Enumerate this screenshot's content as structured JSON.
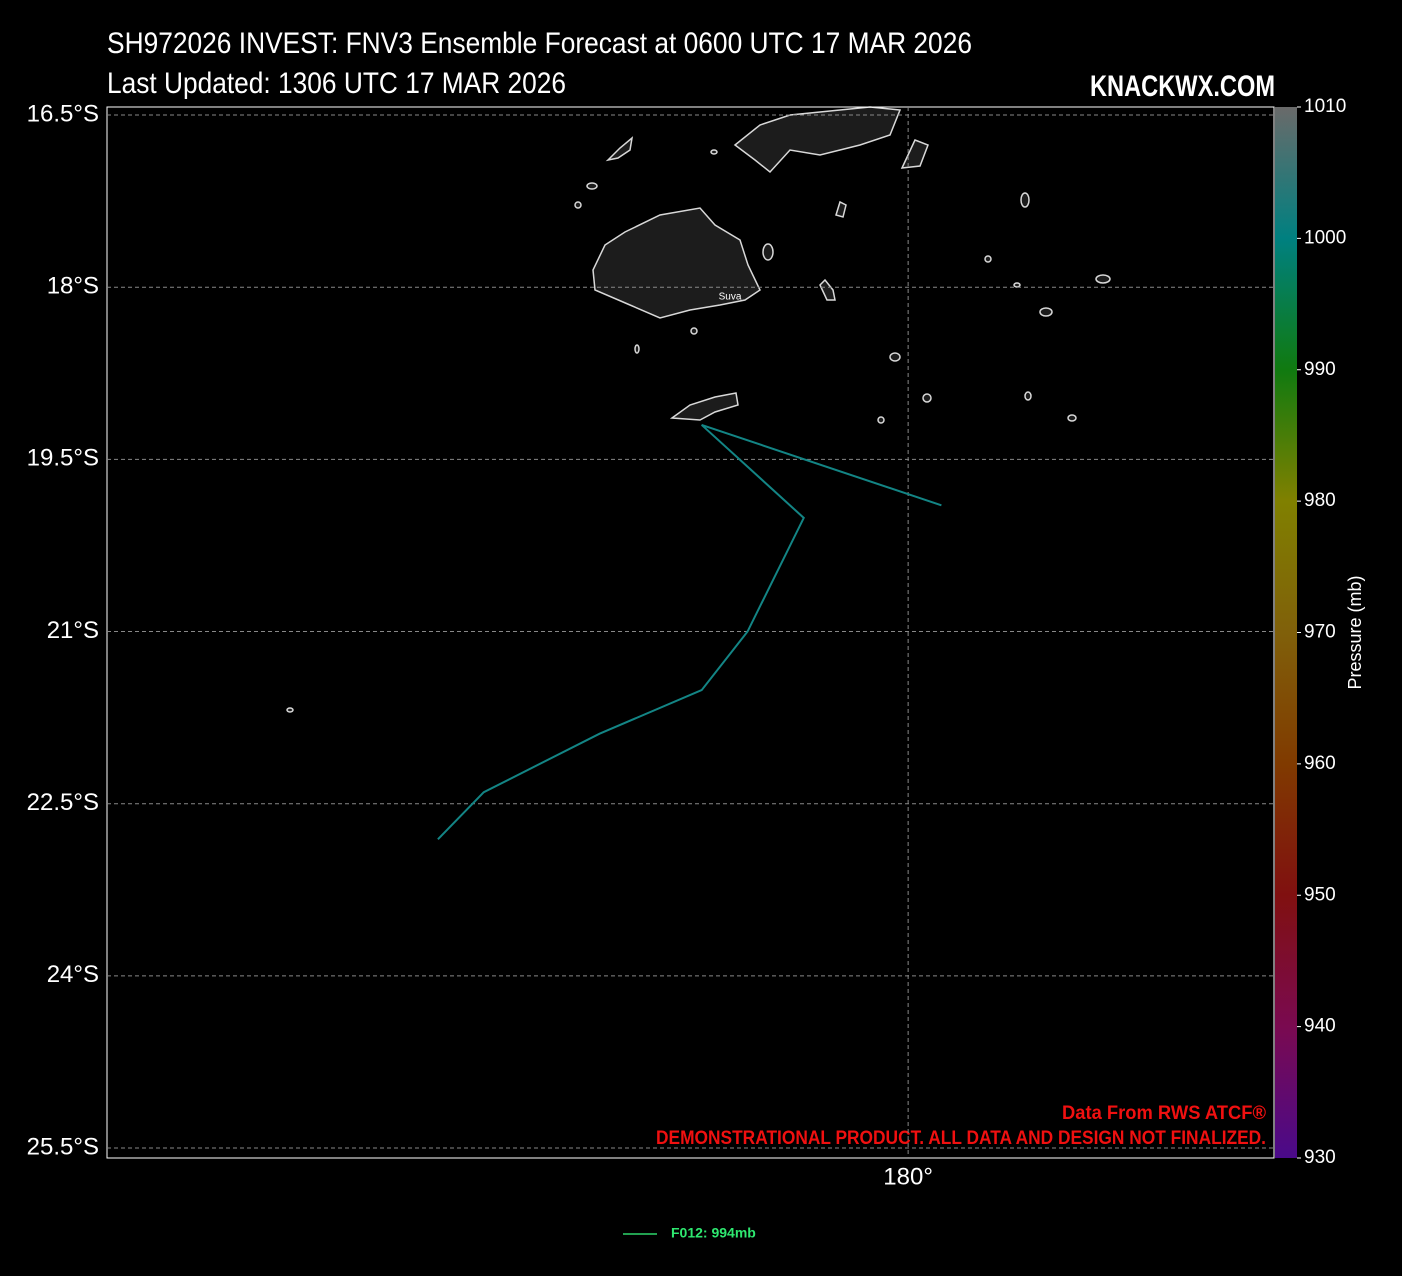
{
  "chart_data": {
    "type": "track-map",
    "title": "SH972026 INVEST: FNV3 Ensemble Forecast at 0600 UTC 17 MAR 2026",
    "subtitle": "Last Updated: 1306 UTC 17 MAR 2026",
    "watermark": "KNACKWX.COM",
    "credits": [
      "Data From RWS ATCF®",
      "DEMONSTRATIONAL PRODUCT. ALL DATA AND DESIGN NOT FINALIZED."
    ],
    "place_labels": [
      "Suva"
    ],
    "xlim": [
      173.015,
      183.19
    ],
    "ylim": [
      -25.587,
      -16.43
    ],
    "xticks": [
      {
        "value": 180,
        "label": "180°"
      }
    ],
    "yticks": [
      {
        "value": -16.5,
        "label": "16.5°S"
      },
      {
        "value": -18,
        "label": "18°S"
      },
      {
        "value": -19.5,
        "label": "19.5°S"
      },
      {
        "value": -21,
        "label": "21°S"
      },
      {
        "value": -22.5,
        "label": "22.5°S"
      },
      {
        "value": -24,
        "label": "24°S"
      },
      {
        "value": -25.5,
        "label": "25.5°S"
      }
    ],
    "grid": true,
    "series": [
      {
        "name": "F012: 994mb",
        "color": "#138585",
        "legend_color": "#22a050",
        "legend_text_color": "#2ee870",
        "x": [
          180.29,
          178.2,
          179.09,
          178.6,
          178.2,
          177.31,
          176.3,
          175.9
        ],
        "values": [
          -19.9,
          -19.2,
          -20.01,
          -21.0,
          -21.51,
          -21.89,
          -22.4,
          -22.81
        ]
      }
    ],
    "colorbar": {
      "label": "Pressure (mb)",
      "lim": [
        930,
        1010
      ],
      "ticks": [
        930,
        940,
        950,
        960,
        970,
        980,
        990,
        1000,
        1010
      ],
      "colors": [
        "#4a0a8a",
        "#7a0a50",
        "#801010",
        "#803a00",
        "#80600a",
        "#808000",
        "#107a10",
        "#008080",
        "#6a6a6a"
      ]
    }
  }
}
